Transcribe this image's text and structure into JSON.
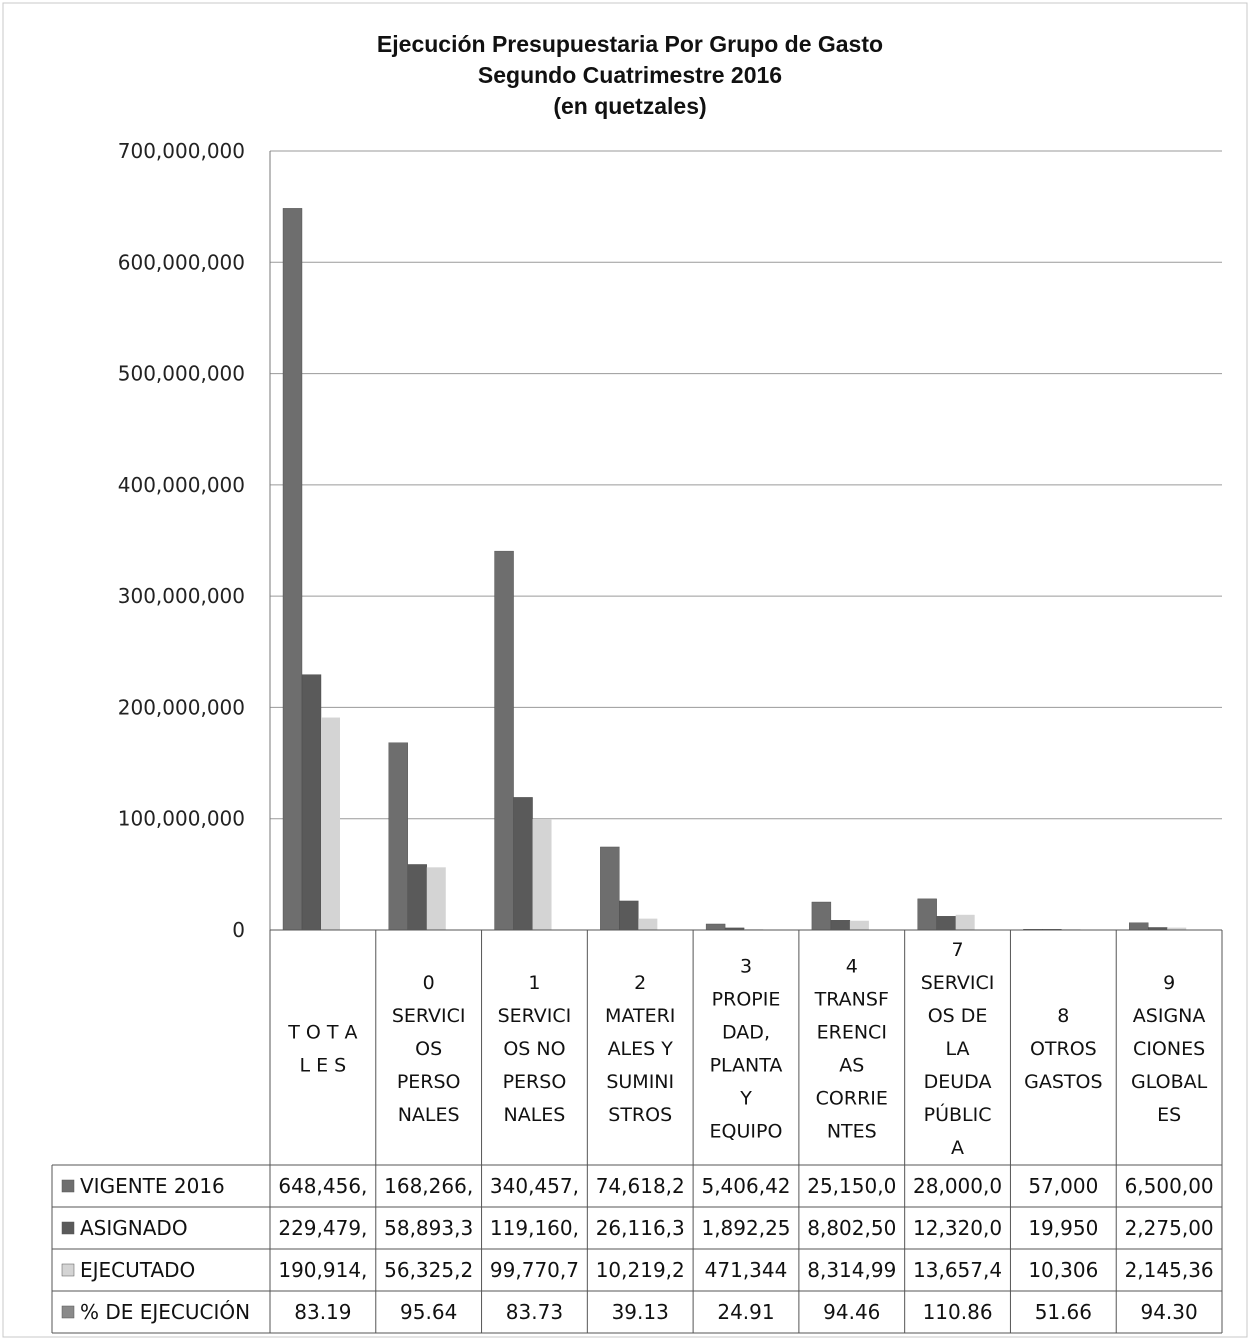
{
  "chart_data": {
    "type": "bar",
    "title_lines": [
      "Ejecución Presupuestaria Por Grupo de Gasto",
      "Segundo Cuatrimestre 2016",
      "(en quetzales)"
    ],
    "ylim": [
      0,
      700000000
    ],
    "yticks": [
      "700,000,000",
      "600,000,000",
      "500,000,000",
      "400,000,000",
      "300,000,000",
      "200,000,000",
      "100,000,000",
      "0"
    ],
    "grid": true,
    "categories": [
      [
        "T O T A",
        "L E S"
      ],
      [
        "0",
        "SERVICI",
        "OS",
        "PERSO",
        "NALES"
      ],
      [
        "1",
        "SERVICI",
        "OS NO",
        "PERSO",
        "NALES"
      ],
      [
        "2",
        "MATERI",
        "ALES Y",
        "SUMINI",
        "STROS"
      ],
      [
        "3",
        "PROPIE",
        "DAD,",
        "PLANTA",
        "Y",
        "EQUIPO"
      ],
      [
        "4",
        "TRANSF",
        "ERENCI",
        "AS",
        "CORRIE",
        "NTES"
      ],
      [
        "7",
        "SERVICI",
        "OS DE",
        "LA",
        "DEUDA",
        "PÚBLIC",
        "A"
      ],
      [
        "8",
        "OTROS",
        "GASTOS"
      ],
      [
        "9",
        "ASIGNA",
        "CIONES",
        "GLOBAL",
        "ES"
      ]
    ],
    "series": [
      {
        "name": "VIGENTE 2016",
        "color": "#6e6e6e",
        "values": [
          648456000,
          168266000,
          340457000,
          74618200,
          5406420,
          25150000,
          28000000,
          57000,
          6500000
        ],
        "labels": [
          "648,456,",
          "168,266,",
          "340,457,",
          "74,618,2",
          "5,406,42",
          "25,150,0",
          "28,000,0",
          "57,000",
          "6,500,00"
        ]
      },
      {
        "name": "ASIGNADO",
        "color": "#5a5a5a",
        "values": [
          229479000,
          58893300,
          119160000,
          26116300,
          1892250,
          8802500,
          12320000,
          19950,
          2275000
        ],
        "labels": [
          "229,479,",
          "58,893,3",
          "119,160,",
          "26,116,3",
          "1,892,25",
          "8,802,50",
          "12,320,0",
          "19,950",
          "2,275,00"
        ]
      },
      {
        "name": "EJECUTADO",
        "color": "#d4d4d4",
        "values": [
          190914000,
          56325200,
          99770700,
          10219200,
          471344,
          8314990,
          13657400,
          10306,
          2145360
        ],
        "labels": [
          "190,914,",
          "56,325,2",
          "99,770,7",
          "10,219,2",
          "471,344",
          "8,314,99",
          "13,657,4",
          "10,306",
          "2,145,36"
        ]
      },
      {
        "name": "% DE EJECUCIÓN",
        "color": "#8a8a8a",
        "values": [
          83.19,
          95.64,
          83.73,
          39.13,
          24.91,
          94.46,
          110.86,
          51.66,
          94.3
        ],
        "labels": [
          "83.19",
          "95.64",
          "83.73",
          "39.13",
          "24.91",
          "94.46",
          "110.86",
          "51.66",
          "94.30"
        ]
      }
    ]
  }
}
